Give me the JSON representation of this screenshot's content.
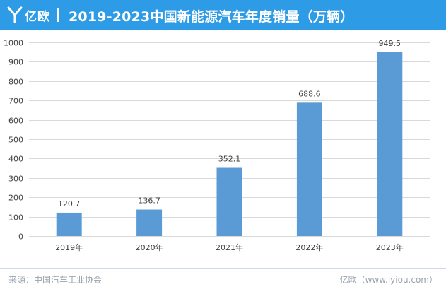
{
  "header": {
    "logo_text": "亿欧",
    "title": "2019-2023中国新能源汽车年度销量（万辆）"
  },
  "chart_data": {
    "type": "bar",
    "title": "2019-2023中国新能源汽车年度销量（万辆）",
    "categories": [
      "2019年",
      "2020年",
      "2021年",
      "2022年",
      "2023年"
    ],
    "values": [
      120.7,
      136.7,
      352.1,
      688.6,
      949.5
    ],
    "value_labels": [
      "120.7",
      "136.7",
      "352.1",
      "688.6",
      "949.5"
    ],
    "ylim": [
      0,
      1000
    ],
    "yticks": [
      0,
      100,
      200,
      300,
      400,
      500,
      600,
      700,
      800,
      900,
      1000
    ],
    "xlabel": "",
    "ylabel": "",
    "grid": true,
    "legend": "none",
    "bar_color": "#5b9bd5"
  },
  "footer": {
    "source": "来源：中国汽车工业协会",
    "credit": "亿欧（www.iyiou.com）"
  },
  "colors": {
    "header_bg": "#2e9be6",
    "bar": "#5b9bd5",
    "grid": "#d9d9d9",
    "text": "#404040",
    "footer_text": "#9aa3ad"
  }
}
